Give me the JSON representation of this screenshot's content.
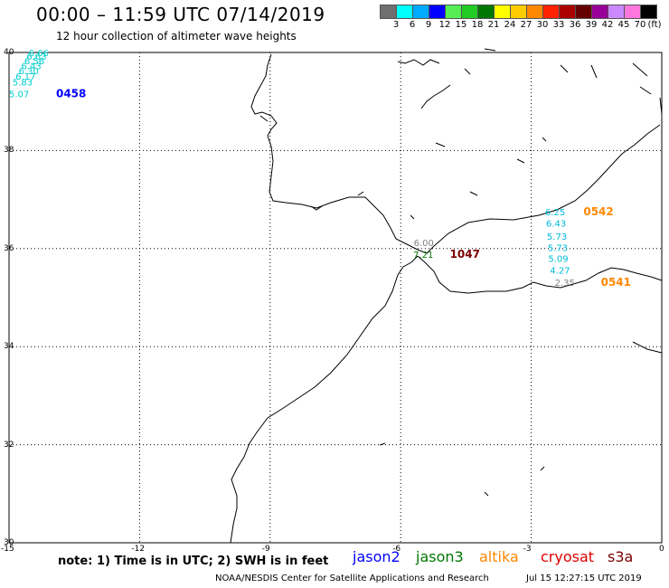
{
  "header": {
    "title": "00:00 – 11:59 UTC 07/14/2019",
    "subtitle": "12 hour collection of altimeter wave heights"
  },
  "colorbar": {
    "colors": [
      "#6f6f6f",
      "#00ffff",
      "#00aaff",
      "#0000ff",
      "#55ee55",
      "#22cc22",
      "#007700",
      "#ffff00",
      "#ffcc00",
      "#ff8800",
      "#ff2200",
      "#aa0000",
      "#660000",
      "#990099",
      "#cc88ff",
      "#ff77dd",
      "#000000"
    ],
    "labels": [
      "3",
      "6",
      "9",
      "12",
      "15",
      "18",
      "21",
      "24",
      "27",
      "30",
      "33",
      "36",
      "39",
      "42",
      "45",
      "70",
      "(ft)"
    ]
  },
  "axes": {
    "lat_labels": [
      "40",
      "38",
      "36",
      "34",
      "32",
      "30"
    ],
    "lon_labels": [
      "-15",
      "-12",
      "-9",
      "-6",
      "-3",
      "0"
    ]
  },
  "chart_data": {
    "type": "scatter",
    "title": "00:00 – 11:59 UTC 07/14/2019",
    "subtitle": "12 hour collection of altimeter wave heights",
    "xlabel": "",
    "ylabel": "",
    "xlim": [
      -15,
      0
    ],
    "ylim": [
      30,
      40
    ],
    "x_ticks": [
      -15,
      -12,
      -9,
      -6,
      -3,
      0
    ],
    "y_ticks": [
      40,
      38,
      36,
      34,
      32,
      30
    ],
    "grid": true,
    "units": "ft",
    "series": [
      {
        "name": "jason2",
        "color": "#0000ff",
        "pass_labels": [
          {
            "text": "0458",
            "lon": -13.92,
            "lat": 39.09
          }
        ],
        "points": [
          {
            "lon": -14.55,
            "lat": 39.93,
            "value": "6.66"
          },
          {
            "lon": -14.6,
            "lat": 39.85,
            "value": "6.63"
          },
          {
            "lon": -14.65,
            "lat": 39.76,
            "value": "6.56"
          },
          {
            "lon": -14.72,
            "lat": 39.66,
            "value": "6.43"
          },
          {
            "lon": -14.78,
            "lat": 39.56,
            "value": "6.30"
          },
          {
            "lon": -14.85,
            "lat": 39.45,
            "value": "6.17"
          },
          {
            "lon": -14.92,
            "lat": 39.33,
            "value": "5.83"
          },
          {
            "lon": -15.0,
            "lat": 39.09,
            "value": "5.07"
          }
        ]
      },
      {
        "name": "jason3",
        "color": "#007700",
        "pass_labels": [
          {
            "text": "1047",
            "lon": -4.87,
            "lat": 35.81
          }
        ],
        "points": [
          {
            "lon": -5.7,
            "lat": 36.05,
            "value": "6.00",
            "color": "#808080"
          },
          {
            "lon": -5.71,
            "lat": 35.81,
            "value": "7.21"
          }
        ]
      },
      {
        "name": "altika",
        "color": "#ff8800",
        "pass_labels": [
          {
            "text": "0542",
            "lon": -1.8,
            "lat": 36.68
          },
          {
            "text": "0541",
            "lon": -1.4,
            "lat": 35.24
          }
        ],
        "points": [
          {
            "lon": -2.68,
            "lat": 36.68,
            "value": "6.25"
          },
          {
            "lon": -2.66,
            "lat": 36.45,
            "value": "6.43"
          },
          {
            "lon": -2.64,
            "lat": 36.18,
            "value": "5.73"
          },
          {
            "lon": -2.62,
            "lat": 35.95,
            "value": "5.73"
          },
          {
            "lon": -2.61,
            "lat": 35.73,
            "value": "5.09"
          },
          {
            "lon": -2.57,
            "lat": 35.49,
            "value": "4.27"
          },
          {
            "lon": -2.46,
            "lat": 35.24,
            "value": "2.35",
            "color": "#808080"
          }
        ]
      },
      {
        "name": "cryosat",
        "color": "#dd0000",
        "pass_labels": [],
        "points": []
      },
      {
        "name": "s3a",
        "color": "#7a0000",
        "pass_labels": [],
        "points": []
      }
    ]
  },
  "legend": {
    "note": "note: 1) Time is in UTC; 2) SWH is in feet",
    "missions": [
      {
        "name": "jason2",
        "color": "#0000ff"
      },
      {
        "name": "jason3",
        "color": "#007700"
      },
      {
        "name": "altika",
        "color": "#ff8800"
      },
      {
        "name": "cryosat",
        "color": "#dd0000"
      },
      {
        "name": "s3a",
        "color": "#7a0000"
      }
    ]
  },
  "footer": {
    "credit": "NOAA/NESDIS Center for Satellite Applications and Research",
    "timestamp": "Jul 15 12:27:15 UTC 2019"
  }
}
